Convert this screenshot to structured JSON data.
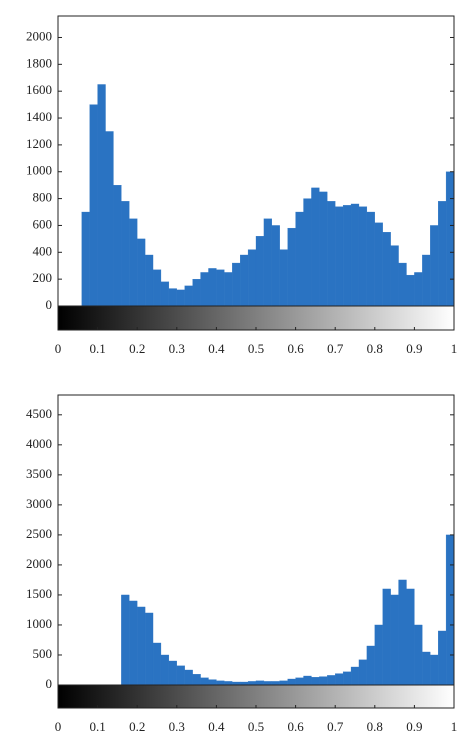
{
  "chart_data": [
    {
      "type": "histogram",
      "bins": [
        0,
        0.02,
        0.04,
        0.06,
        0.08,
        0.1,
        0.12,
        0.14,
        0.16,
        0.18,
        0.2,
        0.22,
        0.24,
        0.26,
        0.28,
        0.3,
        0.32,
        0.34,
        0.36,
        0.38,
        0.4,
        0.42,
        0.44,
        0.46,
        0.48,
        0.5,
        0.52,
        0.54,
        0.56,
        0.58,
        0.6,
        0.62,
        0.64,
        0.66,
        0.68,
        0.7,
        0.72,
        0.74,
        0.76,
        0.78,
        0.8,
        0.82,
        0.84,
        0.86,
        0.88,
        0.9,
        0.92,
        0.94,
        0.96,
        0.98,
        1
      ],
      "values": [
        0,
        0,
        0,
        700,
        1500,
        1650,
        1300,
        900,
        780,
        650,
        500,
        380,
        270,
        180,
        130,
        120,
        150,
        200,
        250,
        280,
        270,
        250,
        320,
        380,
        420,
        520,
        650,
        600,
        420,
        580,
        700,
        800,
        880,
        850,
        780,
        740,
        750,
        760,
        740,
        700,
        620,
        550,
        450,
        320,
        230,
        250,
        380,
        600,
        780,
        1000
      ],
      "color": "#2a73c2",
      "xlim": [
        0,
        1
      ],
      "xticks": [
        0,
        0.1,
        0.2,
        0.3,
        0.4,
        0.5,
        0.6,
        0.7,
        0.8,
        0.9,
        1
      ],
      "ylim": [
        0,
        2160
      ],
      "yticks": [
        0,
        200,
        400,
        600,
        800,
        1000,
        1200,
        1400,
        1600,
        1800,
        2000
      ]
    },
    {
      "type": "histogram",
      "bins": [
        0,
        0.02,
        0.04,
        0.06,
        0.08,
        0.1,
        0.12,
        0.14,
        0.16,
        0.18,
        0.2,
        0.22,
        0.24,
        0.26,
        0.28,
        0.3,
        0.32,
        0.34,
        0.36,
        0.38,
        0.4,
        0.42,
        0.44,
        0.46,
        0.48,
        0.5,
        0.52,
        0.54,
        0.56,
        0.58,
        0.6,
        0.62,
        0.64,
        0.66,
        0.68,
        0.7,
        0.72,
        0.74,
        0.76,
        0.78,
        0.8,
        0.82,
        0.84,
        0.86,
        0.88,
        0.9,
        0.92,
        0.94,
        0.96,
        0.98,
        1
      ],
      "values": [
        0,
        0,
        0,
        0,
        0,
        0,
        0,
        0,
        1500,
        1400,
        1300,
        1200,
        700,
        500,
        400,
        320,
        250,
        180,
        120,
        90,
        70,
        60,
        50,
        50,
        60,
        70,
        60,
        60,
        70,
        100,
        120,
        150,
        130,
        140,
        160,
        190,
        220,
        300,
        420,
        650,
        1000,
        1600,
        1500,
        1750,
        1600,
        1000,
        550,
        500,
        900,
        2500
      ],
      "color": "#2a73c2",
      "xlim": [
        0,
        1
      ],
      "xticks": [
        0,
        0.1,
        0.2,
        0.3,
        0.4,
        0.5,
        0.6,
        0.7,
        0.8,
        0.9,
        1
      ],
      "ylim": [
        0,
        4830
      ],
      "yticks": [
        0,
        500,
        1000,
        1500,
        2000,
        2500,
        3000,
        3500,
        4000,
        4500
      ]
    }
  ]
}
